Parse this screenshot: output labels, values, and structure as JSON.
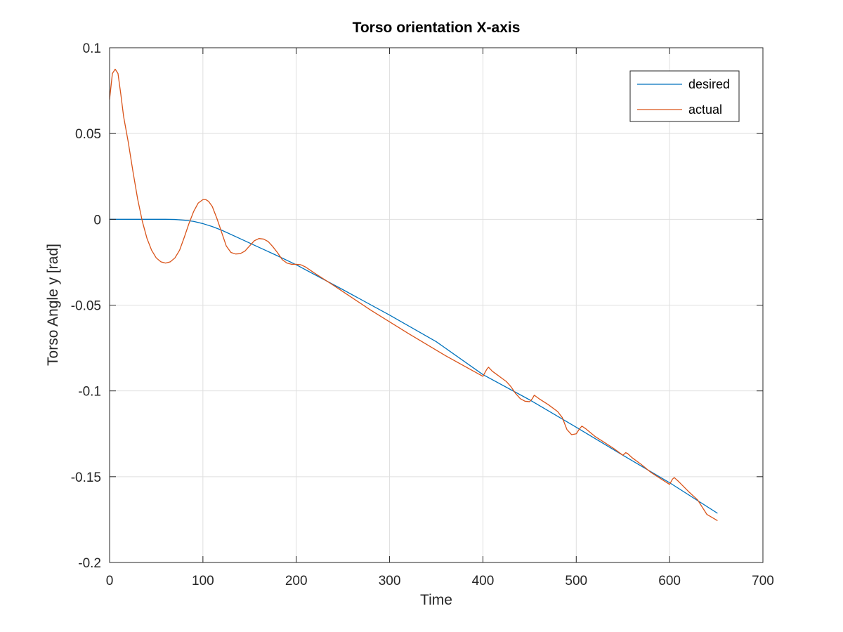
{
  "chart_data": {
    "type": "line",
    "title": "Torso orientation X-axis",
    "xlabel": "Time",
    "ylabel": "Torso Angle y [rad]",
    "xlim": [
      0,
      700
    ],
    "ylim": [
      -0.2,
      0.1
    ],
    "xticks": [
      0,
      100,
      200,
      300,
      400,
      500,
      600,
      700
    ],
    "yticks": [
      -0.2,
      -0.15,
      -0.1,
      -0.05,
      0,
      0.05,
      0.1
    ],
    "xtick_labels": [
      "0",
      "100",
      "200",
      "300",
      "400",
      "500",
      "600",
      "700"
    ],
    "ytick_labels": [
      "-0.2",
      "-0.15",
      "-0.1",
      "-0.05",
      "0",
      "0.05",
      "0.1"
    ],
    "grid": true,
    "legend_position": "top-right",
    "series": [
      {
        "name": "desired",
        "color": "#0072BD",
        "x": [
          0,
          20,
          40,
          60,
          70,
          80,
          90,
          100,
          110,
          120,
          140,
          160,
          180,
          200,
          250,
          300,
          350,
          400,
          450,
          500,
          550,
          600,
          651
        ],
        "y": [
          0,
          0,
          0,
          0,
          -0.0001,
          -0.0005,
          -0.0012,
          -0.0025,
          -0.0042,
          -0.0063,
          -0.0113,
          -0.0163,
          -0.0213,
          -0.0265,
          -0.041,
          -0.0558,
          -0.0713,
          -0.0905,
          -0.1052,
          -0.1212,
          -0.1375,
          -0.1535,
          -0.1712
        ]
      },
      {
        "name": "actual",
        "color": "#D95319",
        "x": [
          0,
          3,
          6,
          9,
          12,
          15,
          20,
          25,
          30,
          35,
          40,
          45,
          50,
          55,
          60,
          65,
          70,
          75,
          80,
          85,
          90,
          95,
          100,
          103,
          106,
          110,
          115,
          120,
          125,
          130,
          135,
          140,
          145,
          150,
          155,
          160,
          165,
          170,
          175,
          180,
          185,
          190,
          195,
          200,
          205,
          210,
          220,
          240,
          280,
          320,
          360,
          400,
          404,
          406,
          410,
          415,
          420,
          425,
          430,
          435,
          440,
          445,
          450,
          453,
          455,
          460,
          470,
          480,
          485,
          490,
          495,
          500,
          503,
          506,
          510,
          520,
          530,
          540,
          550,
          553,
          555,
          560,
          570,
          580,
          590,
          600,
          603,
          605,
          610,
          620,
          630,
          640,
          651
        ],
        "y": [
          0.07,
          0.085,
          0.0875,
          0.085,
          0.073,
          0.06,
          0.045,
          0.028,
          0.012,
          -0.001,
          -0.011,
          -0.018,
          -0.0225,
          -0.0248,
          -0.0255,
          -0.0248,
          -0.0225,
          -0.018,
          -0.0105,
          -0.0025,
          0.0045,
          0.0095,
          0.0115,
          0.0115,
          0.0105,
          0.0075,
          0.0005,
          -0.0075,
          -0.0155,
          -0.0193,
          -0.0202,
          -0.02,
          -0.0185,
          -0.0155,
          -0.0125,
          -0.0112,
          -0.0115,
          -0.013,
          -0.016,
          -0.0195,
          -0.0235,
          -0.0255,
          -0.0262,
          -0.0262,
          -0.0265,
          -0.0278,
          -0.0315,
          -0.0385,
          -0.053,
          -0.0665,
          -0.0795,
          -0.0915,
          -0.0875,
          -0.0862,
          -0.0885,
          -0.0905,
          -0.0925,
          -0.0945,
          -0.0975,
          -0.1015,
          -0.1045,
          -0.106,
          -0.1063,
          -0.1045,
          -0.1025,
          -0.1045,
          -0.108,
          -0.112,
          -0.1155,
          -0.1225,
          -0.1255,
          -0.125,
          -0.1225,
          -0.1205,
          -0.122,
          -0.1265,
          -0.13,
          -0.1335,
          -0.1375,
          -0.136,
          -0.1365,
          -0.139,
          -0.143,
          -0.1475,
          -0.151,
          -0.1545,
          -0.1515,
          -0.1505,
          -0.153,
          -0.1585,
          -0.1635,
          -0.172,
          -0.1755
        ]
      }
    ]
  }
}
